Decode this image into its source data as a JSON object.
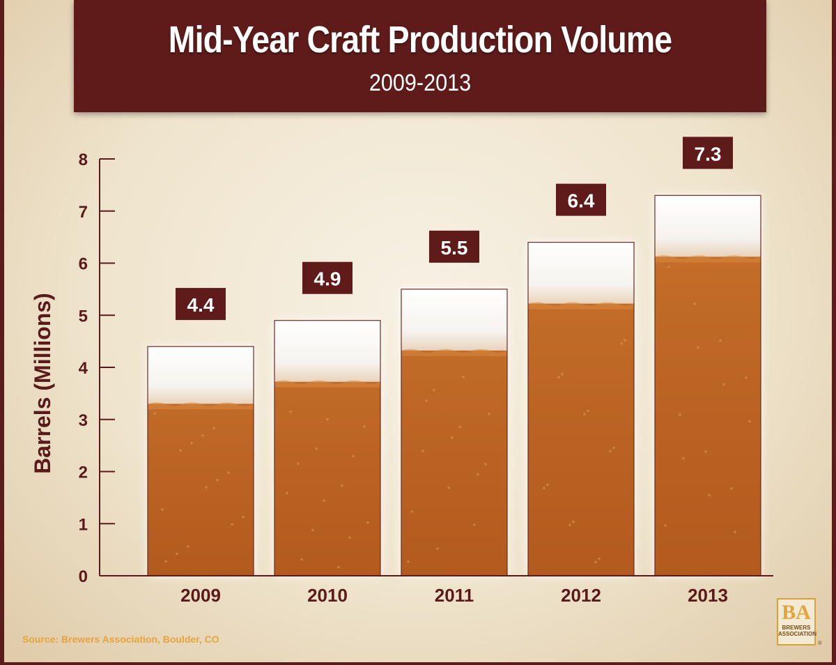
{
  "header": {
    "title": "Mid-Year Craft Production Volume",
    "subtitle": "2009-2013"
  },
  "chart_data": {
    "type": "bar",
    "title": "Mid-Year Craft Production Volume",
    "subtitle": "2009-2013",
    "xlabel": "",
    "ylabel": "Barrels (Millions)",
    "categories": [
      "2009",
      "2010",
      "2011",
      "2012",
      "2013"
    ],
    "values": [
      4.4,
      4.9,
      5.5,
      6.4,
      7.3
    ],
    "data_labels": [
      "4.4",
      "4.9",
      "5.5",
      "6.4",
      "7.3"
    ],
    "ylim": [
      0,
      8
    ],
    "yticks": [
      "0",
      "1",
      "2",
      "3",
      "4",
      "5",
      "6",
      "7",
      "8"
    ],
    "grid": false,
    "legend": "none",
    "colors": {
      "bar_beer": "#b96121",
      "bar_foam": "#fbfbfb",
      "label_box": "#5e1b1a",
      "axis": "#5a1a19"
    }
  },
  "footer": {
    "source": "Source: Brewers Association, Boulder, CO",
    "logo_mark": "BA",
    "logo_line1": "BREWERS",
    "logo_line2": "ASSOCIATION",
    "logo_reg": "®"
  }
}
